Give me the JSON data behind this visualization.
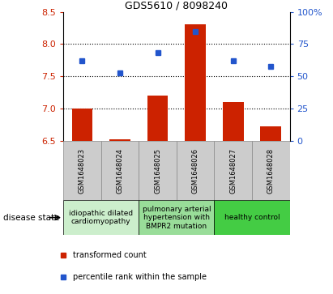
{
  "title": "GDS5610 / 8098240",
  "samples": [
    "GSM1648023",
    "GSM1648024",
    "GSM1648025",
    "GSM1648026",
    "GSM1648027",
    "GSM1648028"
  ],
  "red_values": [
    7.01,
    6.53,
    7.2,
    8.3,
    7.1,
    6.73
  ],
  "blue_values": [
    7.74,
    7.55,
    7.87,
    8.19,
    7.74,
    7.65
  ],
  "ylim_left": [
    6.5,
    8.5
  ],
  "ylim_right": [
    0,
    100
  ],
  "yticks_left": [
    6.5,
    7.0,
    7.5,
    8.0,
    8.5
  ],
  "yticks_right": [
    0,
    25,
    50,
    75,
    100
  ],
  "yticklabels_right": [
    "0",
    "25",
    "50",
    "75",
    "100%"
  ],
  "bar_bottom": 6.5,
  "bar_color": "#cc2200",
  "dot_color": "#2255cc",
  "dot_size": 5,
  "grid_lines": [
    7.0,
    7.5,
    8.0
  ],
  "disease_groups": [
    {
      "label": "idiopathic dilated\ncardiomyopathy",
      "indices": [
        0,
        1
      ],
      "color": "#cceecc"
    },
    {
      "label": "pulmonary arterial\nhypertension with\nBMPR2 mutation",
      "indices": [
        2,
        3
      ],
      "color": "#99dd99"
    },
    {
      "label": "healthy control",
      "indices": [
        4,
        5
      ],
      "color": "#44cc44"
    }
  ],
  "legend_red_label": "transformed count",
  "legend_blue_label": "percentile rank within the sample",
  "disease_state_label": "disease state",
  "left_axis_color": "#cc2200",
  "right_axis_color": "#2255cc",
  "sample_box_color": "#cccccc",
  "sample_box_edge": "#888888",
  "title_fontsize": 9,
  "axis_fontsize": 8,
  "sample_label_fontsize": 6,
  "disease_label_fontsize": 6.5,
  "legend_fontsize": 7,
  "bar_width": 0.55
}
